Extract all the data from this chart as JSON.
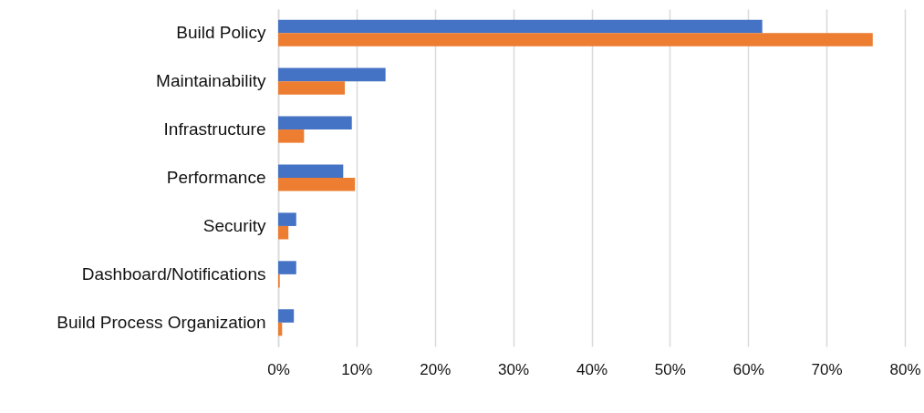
{
  "chart_data": {
    "type": "bar",
    "orientation": "horizontal",
    "categories": [
      "Build Policy",
      "Maintainability",
      "Infrastructure",
      "Performance",
      "Security",
      "Dashboard/Notifications",
      "Build Process Organization"
    ],
    "series": [
      {
        "color": "#4472c4",
        "values": [
          61.8,
          13.7,
          9.4,
          8.3,
          2.3,
          2.3,
          2.0
        ]
      },
      {
        "color": "#ed7d31",
        "values": [
          75.9,
          8.5,
          3.3,
          9.8,
          1.3,
          0.2,
          0.5
        ]
      }
    ],
    "xlim": [
      0,
      80
    ],
    "xticks": [
      {
        "value": 0,
        "label": "0%"
      },
      {
        "value": 10,
        "label": "10%"
      },
      {
        "value": 20,
        "label": "20%"
      },
      {
        "value": 30,
        "label": "30%"
      },
      {
        "value": 40,
        "label": "40%"
      },
      {
        "value": 50,
        "label": "50%"
      },
      {
        "value": 60,
        "label": "60%"
      },
      {
        "value": 70,
        "label": "70%"
      },
      {
        "value": 80,
        "label": "80%"
      }
    ],
    "grid": "x"
  }
}
